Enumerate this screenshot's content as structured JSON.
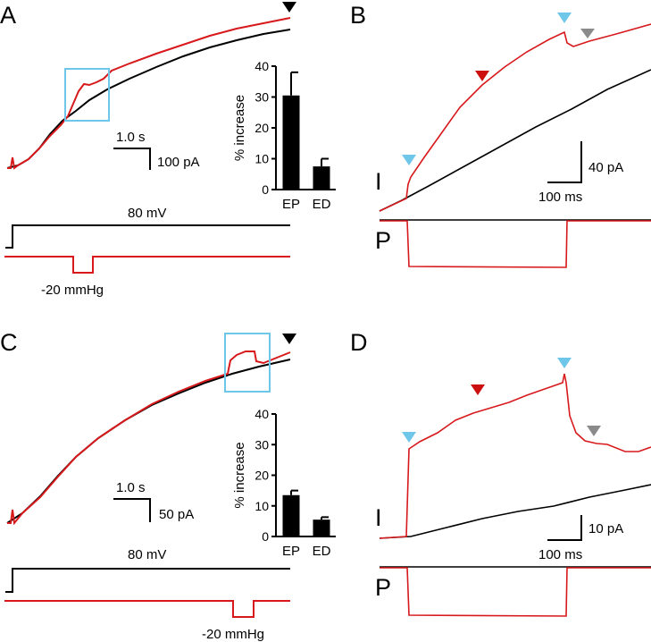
{
  "colors": {
    "control": "#000000",
    "pressure": "#d7191c",
    "box": "#6ec6e9",
    "arrow_red": "#cc1010",
    "arrow_blue": "#6ec6e9",
    "arrow_gray": "#8a8a8a",
    "bar": "#000000"
  },
  "panels": {
    "A": {
      "label": "A",
      "scale_time": "1.0 s",
      "scale_current": "100 pA",
      "voltage": "80 mV",
      "pressure": "-20 mmHg"
    },
    "B": {
      "label": "B",
      "scale_current": "40 pA",
      "scale_time": "100 ms",
      "trace_i": "I",
      "trace_p": "P"
    },
    "C": {
      "label": "C",
      "scale_time": "1.0 s",
      "scale_current": "50 pA",
      "voltage": "80 mV",
      "pressure": "-20 mmHg"
    },
    "D": {
      "label": "D",
      "scale_current": "10 pA",
      "scale_time": "100 ms",
      "trace_i": "I",
      "trace_p": "P"
    }
  },
  "chart_data": [
    {
      "type": "bar",
      "panel": "A",
      "categories": [
        "EP",
        "ED"
      ],
      "values": [
        30.5,
        7.5
      ],
      "errors": [
        7.5,
        2.5
      ],
      "ylabel": "% increase",
      "ylim": [
        0,
        40
      ],
      "yticks": [
        "0",
        "10",
        "20",
        "30",
        "40"
      ]
    },
    {
      "type": "bar",
      "panel": "C",
      "categories": [
        "EP",
        "ED"
      ],
      "values": [
        13.5,
        5.5
      ],
      "errors": [
        1.5,
        0.8
      ],
      "ylabel": "% increase",
      "ylim": [
        0,
        40
      ],
      "yticks": [
        "0",
        "10",
        "20",
        "30",
        "40"
      ]
    }
  ]
}
